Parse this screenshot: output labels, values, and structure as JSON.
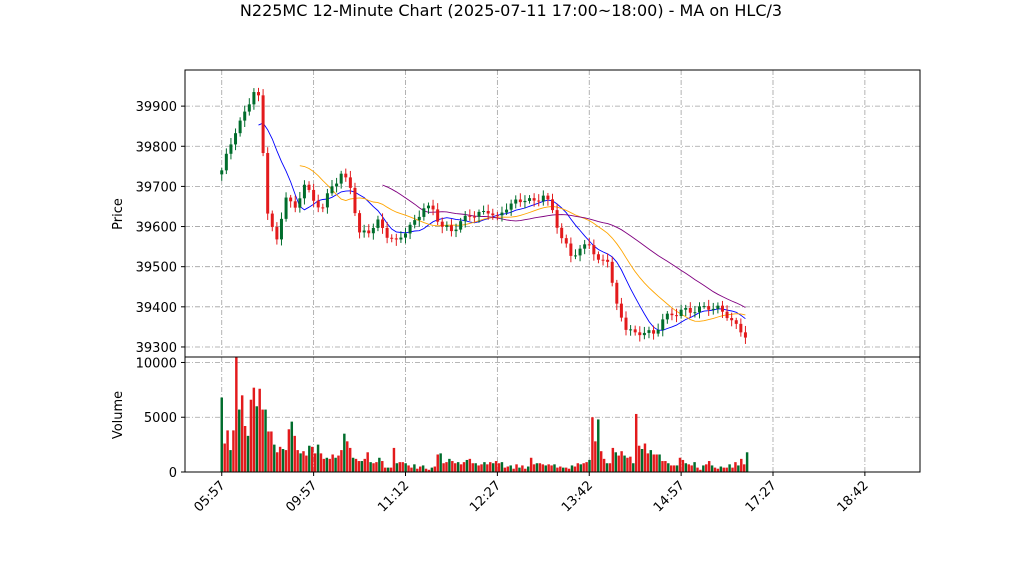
{
  "chart_data": {
    "type": "candlestick",
    "title": "N225MC 12-Minute Chart (2025-07-11 17:00~18:00) - MA on HLC/3",
    "price_panel": {
      "ylabel": "Price",
      "ylim": [
        39275,
        39990
      ],
      "yticks": [
        39300,
        39400,
        39500,
        39600,
        39700,
        39800,
        39900
      ],
      "grid": true
    },
    "volume_panel": {
      "ylabel": "Volume",
      "ylim": [
        0,
        10500
      ],
      "yticks": [
        0,
        5000,
        10000
      ],
      "grid": true
    },
    "x": {
      "tick_labels": [
        "05:57",
        "09:57",
        "11:12",
        "12:27",
        "13:42",
        "14:57",
        "17:27",
        "18:42"
      ],
      "tick_index": [
        0,
        20,
        40,
        60,
        80,
        100,
        120,
        140
      ],
      "range": [
        -8,
        152
      ]
    },
    "up_color": "#006d2c",
    "down_color": "#e31a1c",
    "volume_values": [
      6800,
      2600,
      3800,
      2000,
      3800,
      10500,
      5700,
      7000,
      4200,
      3300,
      6600,
      7700,
      6000,
      7600,
      5700,
      5700,
      3700,
      3700,
      2500,
      1800,
      2300,
      2100,
      2000,
      3900,
      4600,
      3300,
      2000,
      1700,
      1900,
      1500,
      2400,
      2300,
      1700,
      2500,
      1700,
      1200,
      1300,
      1200,
      1600,
      1300,
      1500,
      2000,
      3500,
      2800,
      2200,
      1300,
      1200,
      1000,
      1000,
      1200,
      1800,
      900,
      800,
      900,
      1300,
      1000,
      400,
      400,
      400,
      2200,
      800,
      900,
      900,
      800,
      600,
      400,
      700,
      300,
      500,
      600,
      300,
      200,
      400,
      500,
      1600,
      1700,
      800,
      900,
      1200,
      1000,
      800,
      900,
      700,
      900,
      1100,
      1200,
      800,
      800,
      600,
      700,
      900,
      700,
      900,
      800,
      1000,
      800,
      900,
      400,
      500,
      600,
      300,
      700,
      400,
      600,
      300,
      500,
      1300,
      700,
      800,
      800,
      700,
      600,
      700,
      600,
      700,
      400,
      500,
      400,
      400,
      300,
      600,
      500,
      800,
      700,
      800,
      900,
      1100,
      5000,
      2800,
      4800,
      1900,
      1200,
      800,
      800,
      2200,
      1800,
      1500,
      1900,
      1500,
      1300,
      1400,
      800,
      5300,
      2400,
      2100,
      2600,
      1700,
      2000,
      1600,
      1600,
      1600,
      1000,
      1000,
      800,
      600,
      600,
      600,
      1300,
      1100,
      800,
      700,
      600,
      900,
      400,
      200,
      600,
      700,
      1000,
      600,
      400,
      300,
      500,
      400,
      400,
      700,
      400,
      900,
      600,
      1200,
      700,
      1800
    ]
  }
}
